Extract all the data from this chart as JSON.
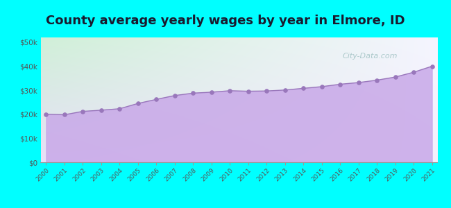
{
  "title": "County average yearly wages by year in Elmore, ID",
  "years": [
    2000,
    2001,
    2002,
    2003,
    2004,
    2005,
    2006,
    2007,
    2008,
    2009,
    2010,
    2011,
    2012,
    2013,
    2014,
    2015,
    2016,
    2017,
    2018,
    2019,
    2020,
    2021
  ],
  "wages": [
    20000,
    19800,
    21200,
    21700,
    22300,
    24500,
    26200,
    27800,
    28800,
    29200,
    29800,
    29600,
    29700,
    30100,
    30800,
    31500,
    32500,
    33200,
    34200,
    35500,
    37500,
    40000
  ],
  "ylim": [
    0,
    52000
  ],
  "yticks": [
    0,
    10000,
    20000,
    30000,
    40000,
    50000
  ],
  "ytick_labels": [
    "$0",
    "$10k",
    "$20k",
    "$30k",
    "$40k",
    "$50k"
  ],
  "fill_color": "#c8a8e8",
  "fill_alpha": 0.85,
  "line_color": "#9977bb",
  "dot_color": "#9977bb",
  "bg_outer": "#00ffff",
  "bg_grad_topleft": "#d0f0d8",
  "bg_grad_topright": "#f8f8ff",
  "bg_grad_bottom": "#e8e0f8",
  "title_fontsize": 13,
  "title_color": "#1a1a2e",
  "watermark": "City-Data.com",
  "watermark_color": "#90b8b8",
  "watermark_alpha": 0.7
}
